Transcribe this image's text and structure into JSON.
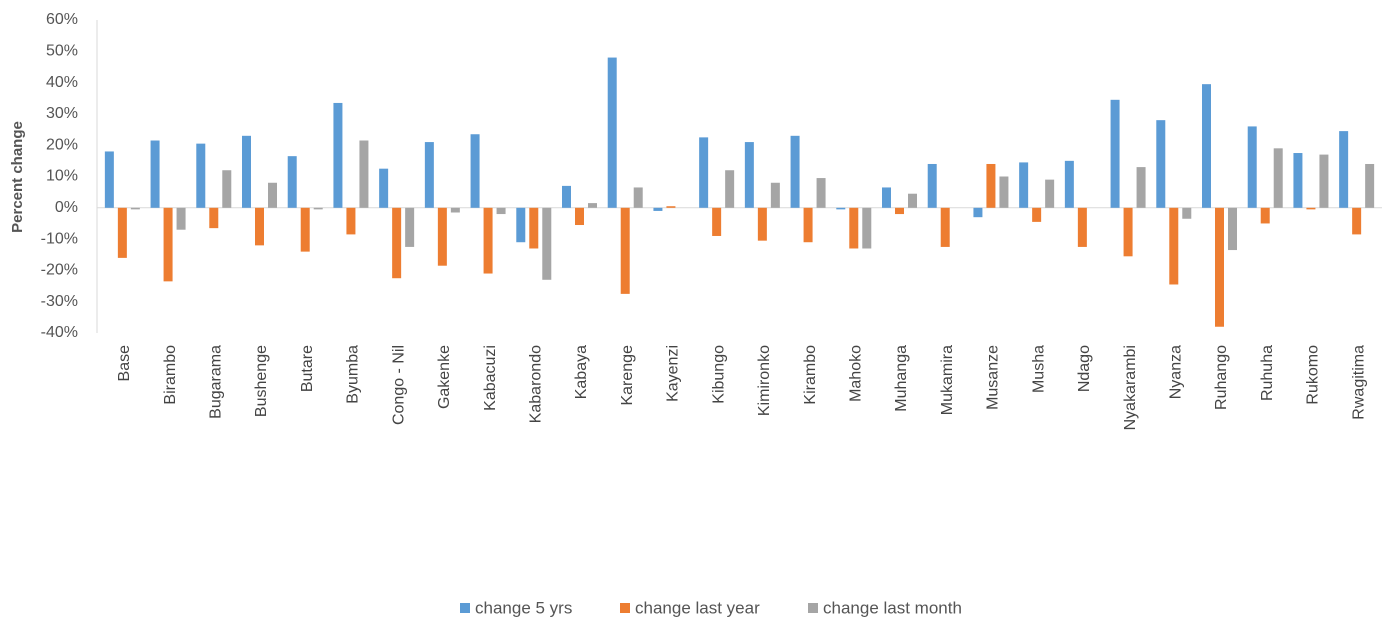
{
  "chart_data": {
    "type": "bar",
    "y_label": "Percent change",
    "categories": [
      "Base",
      "Birambo",
      "Bugarama",
      "Bushenge",
      "Butare",
      "Byumba",
      "Congo - Nil",
      "Gakenke",
      "Kabacuzi",
      "Kabarondo",
      "Kabaya",
      "Karenge",
      "Kayenzi",
      "Kibungo",
      "Kimironko",
      "Kirambo",
      "Mahoko",
      "Muhanga",
      "Mukamira",
      "Musanze",
      "Musha",
      "Ndago",
      "Nyakarambi",
      "Nyanza",
      "Ruhango",
      "Ruhuha",
      "Rukomo",
      "Rwagitima"
    ],
    "series": [
      {
        "name": "change 5 yrs",
        "color": "#5b9bd5",
        "values": [
          18,
          21.5,
          20.5,
          23,
          16.5,
          33.5,
          12.5,
          21,
          23.5,
          -11,
          7,
          48,
          -1,
          22.5,
          21,
          23,
          -0.5,
          6.5,
          14,
          -3,
          14.5,
          15,
          34.5,
          28,
          39.5,
          26,
          17.5,
          24.5
        ]
      },
      {
        "name": "change last year",
        "color": "#ed7d31",
        "values": [
          -16,
          -23.5,
          -6.5,
          -12,
          -14,
          -8.5,
          -22.5,
          -18.5,
          -21,
          -13,
          -5.5,
          -27.5,
          0.5,
          -9,
          -10.5,
          -11,
          -13,
          -2,
          -12.5,
          14,
          -4.5,
          -12.5,
          -15.5,
          -24.5,
          -38,
          -5,
          -0.5,
          -8.5
        ]
      },
      {
        "name": "change last month",
        "color": "#a5a5a5",
        "values": [
          -0.5,
          -7,
          12,
          8,
          -0.5,
          21.5,
          -12.5,
          -1.5,
          -2,
          -23,
          1.5,
          6.5,
          0,
          12,
          8,
          9.5,
          -13,
          4.5,
          0,
          10,
          9,
          0,
          13,
          -3.5,
          -13.5,
          19,
          17,
          14
        ]
      }
    ],
    "ylim": [
      -40,
      60
    ],
    "yticks": [
      {
        "value": -40,
        "label": "-40%"
      },
      {
        "value": -30,
        "label": "-30%"
      },
      {
        "value": -20,
        "label": "-20%"
      },
      {
        "value": -10,
        "label": "-10%"
      },
      {
        "value": 0,
        "label": "0%"
      },
      {
        "value": 10,
        "label": "10%"
      },
      {
        "value": 20,
        "label": "20%"
      },
      {
        "value": 30,
        "label": "30%"
      },
      {
        "value": 40,
        "label": "40%"
      },
      {
        "value": 50,
        "label": "50%"
      },
      {
        "value": 60,
        "label": "60%"
      }
    ],
    "grid": false,
    "legend": "bottom"
  }
}
